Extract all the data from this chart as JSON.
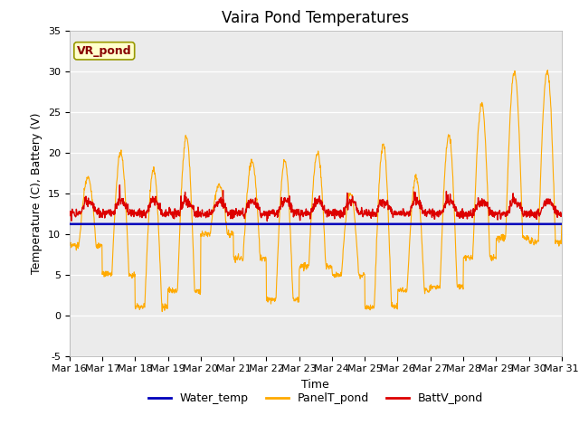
{
  "title": "Vaira Pond Temperatures",
  "xlabel": "Time",
  "ylabel": "Temperature (C), Battery (V)",
  "xlim": [
    0,
    360
  ],
  "ylim": [
    -5,
    35
  ],
  "yticks": [
    -5,
    0,
    5,
    10,
    15,
    20,
    25,
    30,
    35
  ],
  "xtick_labels": [
    "Mar 16",
    "Mar 17",
    "Mar 18",
    "Mar 19",
    "Mar 20",
    "Mar 21",
    "Mar 22",
    "Mar 23",
    "Mar 24",
    "Mar 25",
    "Mar 26",
    "Mar 27",
    "Mar 28",
    "Mar 29",
    "Mar 30",
    "Mar 31"
  ],
  "xtick_positions": [
    0,
    24,
    48,
    72,
    96,
    120,
    144,
    168,
    192,
    216,
    240,
    264,
    288,
    312,
    336,
    360
  ],
  "water_temp_value": 11.2,
  "water_color": "#0000bb",
  "panel_color": "#ffaa00",
  "batt_color": "#dd0000",
  "bg_color": "#ebebeb",
  "legend_label_water": "Water_temp",
  "legend_label_panel": "PanelT_pond",
  "legend_label_batt": "BattV_pond",
  "site_label": "VR_pond",
  "site_label_color": "#880000",
  "site_label_bg": "#ffffcc",
  "title_fontsize": 12,
  "axis_fontsize": 9,
  "tick_fontsize": 8,
  "legend_fontsize": 9
}
